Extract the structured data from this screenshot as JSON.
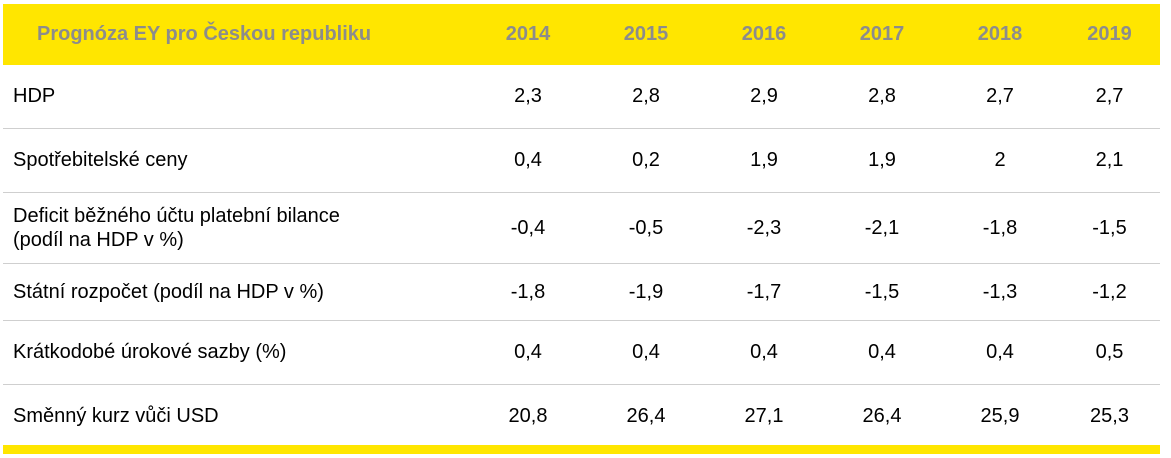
{
  "chart_data": {
    "type": "table",
    "header_label": "Prognóza EY pro Českou republiku",
    "years": [
      "2014",
      "2015",
      "2016",
      "2017",
      "2018",
      "2019"
    ],
    "rows": [
      {
        "label": "HDP",
        "values": [
          "2,3",
          "2,8",
          "2,9",
          "2,8",
          "2,7",
          "2,7"
        ]
      },
      {
        "label": "Spotřebitelské ceny",
        "values": [
          "0,4",
          "0,2",
          "1,9",
          "1,9",
          "2",
          "2,1"
        ]
      },
      {
        "label_line1": "Deficit běžného účtu platební bilance",
        "label_line2": "(podíl na HDP v %)",
        "values": [
          "-0,4",
          "-0,5",
          "-2,3",
          "-2,1",
          "-1,8",
          "-1,5"
        ]
      },
      {
        "label": "Státní rozpočet (podíl na HDP v %)",
        "values": [
          "-1,8",
          "-1,9",
          "-1,7",
          "-1,5",
          "-1,3",
          "-1,2"
        ]
      },
      {
        "label": "Krátkodobé úrokové sazby (%)",
        "values": [
          "0,4",
          "0,4",
          "0,4",
          "0,4",
          "0,4",
          "0,5"
        ]
      },
      {
        "label": "Směnný kurz vůči USD",
        "values": [
          "20,8",
          "26,4",
          "27,1",
          "26,4",
          "25,9",
          "25,3"
        ]
      }
    ]
  },
  "colors": {
    "header_bg": "#ffe600",
    "header_text": "#8c8c8c",
    "body_text": "#000000",
    "row_divider": "#cfcfcf"
  }
}
